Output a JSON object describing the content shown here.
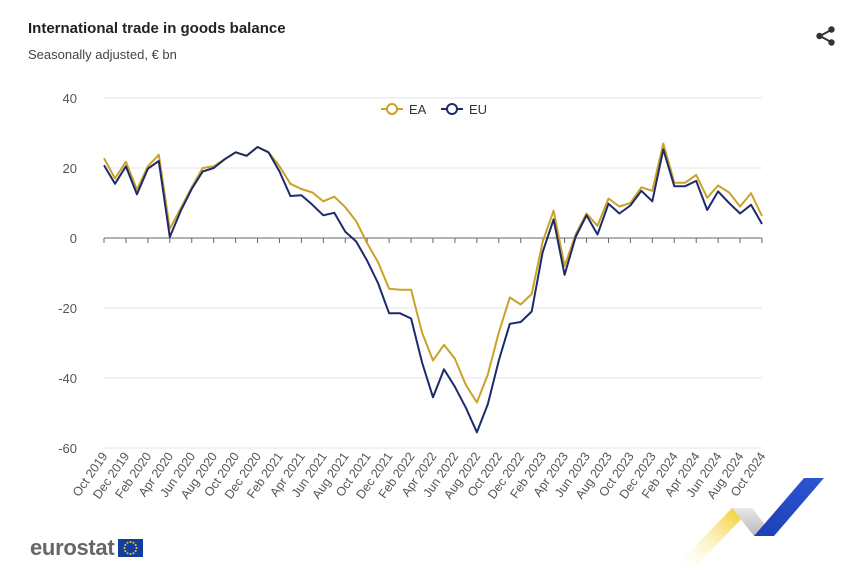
{
  "header": {
    "title": "International trade in goods balance",
    "subtitle": "Seasonally adjusted, € bn"
  },
  "footer": {
    "logo_text": "eurostat"
  },
  "icons": {
    "share": "share-icon",
    "flag": "eu-flag-icon"
  },
  "colors": {
    "EA": "#c9a227",
    "EU": "#1d2a6b",
    "grid": "#e6e6e6",
    "axis": "#666666"
  },
  "chart_data": {
    "type": "line",
    "ylim": [
      -60,
      40
    ],
    "yticks": [
      -60,
      -40,
      -20,
      0,
      20,
      40
    ],
    "grid": "horizontal",
    "legend_position": "top-center",
    "x": [
      "Oct 2019",
      "Nov 2019",
      "Dec 2019",
      "Jan 2020",
      "Feb 2020",
      "Mar 2020",
      "Apr 2020",
      "May 2020",
      "Jun 2020",
      "Jul 2020",
      "Aug 2020",
      "Sep 2020",
      "Oct 2020",
      "Nov 2020",
      "Dec 2020",
      "Jan 2021",
      "Feb 2021",
      "Mar 2021",
      "Apr 2021",
      "May 2021",
      "Jun 2021",
      "Jul 2021",
      "Aug 2021",
      "Sep 2021",
      "Oct 2021",
      "Nov 2021",
      "Dec 2021",
      "Jan 2022",
      "Feb 2022",
      "Mar 2022",
      "Apr 2022",
      "May 2022",
      "Jun 2022",
      "Jul 2022",
      "Aug 2022",
      "Sep 2022",
      "Oct 2022",
      "Nov 2022",
      "Dec 2022",
      "Jan 2023",
      "Feb 2023",
      "Mar 2023",
      "Apr 2023",
      "May 2023",
      "Jun 2023",
      "Jul 2023",
      "Aug 2023",
      "Sep 2023",
      "Oct 2023",
      "Nov 2023",
      "Dec 2023",
      "Jan 2024",
      "Feb 2024",
      "Mar 2024",
      "Apr 2024",
      "May 2024",
      "Jun 2024",
      "Jul 2024",
      "Aug 2024",
      "Sep 2024",
      "Oct 2024"
    ],
    "xticklabels": [
      "Oct 2019",
      "Dec 2019",
      "Feb 2020",
      "Apr 2020",
      "Jun 2020",
      "Aug 2020",
      "Oct 2020",
      "Dec 2020",
      "Feb 2021",
      "Apr 2021",
      "Jun 2021",
      "Aug 2021",
      "Oct 2021",
      "Dec 2021",
      "Feb 2022",
      "Apr 2022",
      "Jun 2022",
      "Aug 2022",
      "Oct 2022",
      "Dec 2022",
      "Feb 2023",
      "Apr 2023",
      "Jun 2023",
      "Aug 2023",
      "Oct 2023",
      "Dec 2023",
      "Feb 2024",
      "Apr 2024",
      "Jun 2024",
      "Aug 2024",
      "Oct 2024"
    ],
    "series": [
      {
        "name": "EA",
        "color": "#c9a227",
        "values": [
          22.8,
          17.0,
          21.8,
          13.8,
          20.5,
          23.8,
          2.6,
          8.5,
          14.5,
          20.0,
          20.5,
          22.5,
          24.5,
          23.5,
          26.0,
          24.5,
          20.5,
          15.5,
          14.0,
          13.0,
          10.5,
          11.8,
          8.8,
          4.8,
          -1.5,
          -7.0,
          -14.5,
          -14.8,
          -14.8,
          -27.0,
          -35.0,
          -30.5,
          -34.5,
          -42.0,
          -47.0,
          -39.0,
          -27.0,
          -17.0,
          -19.0,
          -16.0,
          -1.0,
          7.8,
          -8.0,
          1.0,
          7.0,
          3.5,
          11.3,
          9.0,
          10.0,
          14.5,
          13.5,
          27.0,
          15.8,
          15.8,
          18.0,
          11.5,
          15.0,
          13.0,
          9.0,
          12.8,
          6.3
        ]
      },
      {
        "name": "EU",
        "color": "#1d2a6b",
        "values": [
          20.8,
          15.5,
          20.5,
          12.5,
          19.8,
          22.0,
          0.3,
          7.8,
          14.0,
          19.0,
          20.0,
          22.5,
          24.5,
          23.5,
          26.0,
          24.5,
          19.0,
          12.0,
          12.2,
          9.5,
          6.5,
          7.2,
          1.8,
          -1.0,
          -6.5,
          -13.0,
          -21.5,
          -21.5,
          -23.0,
          -35.5,
          -45.5,
          -37.5,
          -42.5,
          -48.5,
          -55.5,
          -47.5,
          -35.0,
          -24.5,
          -24.0,
          -21.0,
          -4.0,
          5.3,
          -10.5,
          0.3,
          6.5,
          1.0,
          9.8,
          7.0,
          9.3,
          13.5,
          10.5,
          25.3,
          14.8,
          14.8,
          16.3,
          8.0,
          13.3,
          10.0,
          7.0,
          9.5,
          4.0
        ]
      }
    ]
  }
}
